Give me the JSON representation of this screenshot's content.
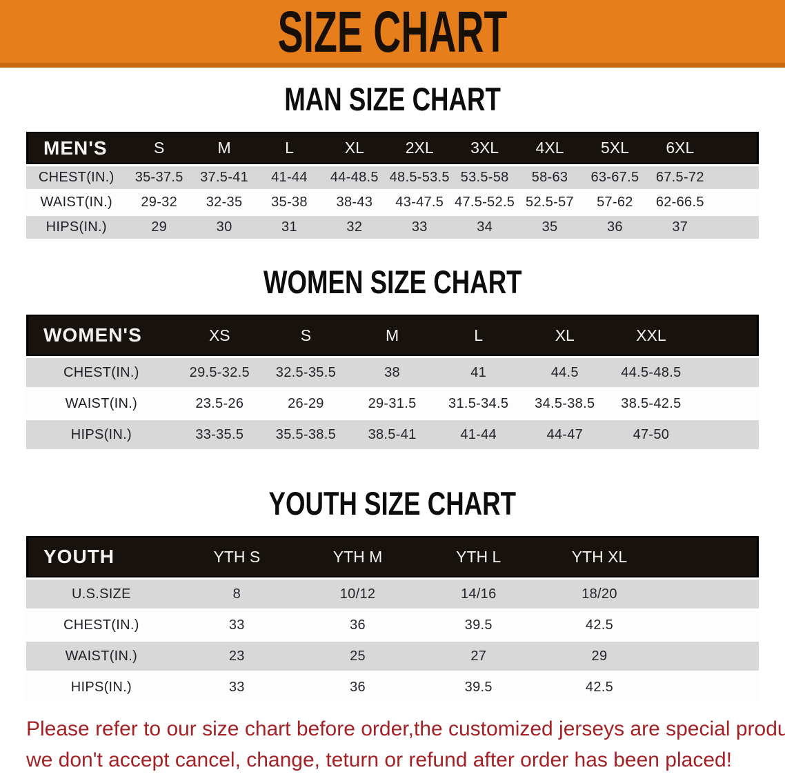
{
  "banner": {
    "title": "SIZE CHART",
    "bg_color": "#e67e1b",
    "edge_color": "#c96a12",
    "text_color": "#181007"
  },
  "colors": {
    "table_header_bg": "#17120d",
    "table_header_text": "#f5f3f0",
    "row_gray": "#d8d8d8",
    "row_white": "#fdfdfd",
    "disclaimer_red": "#a42226"
  },
  "sections": [
    {
      "id": "men",
      "heading": "MAN SIZE CHART",
      "header_label": "MEN'S",
      "columns": [
        "S",
        "M",
        "L",
        "XL",
        "2XL",
        "3XL",
        "4XL",
        "5XL",
        "6XL"
      ],
      "rows": [
        {
          "label": "CHEST(IN.)",
          "values": [
            "35-37.5",
            "37.5-41",
            "41-44",
            "44-48.5",
            "48.5-53.5",
            "53.5-58",
            "58-63",
            "63-67.5",
            "67.5-72"
          ]
        },
        {
          "label": "WAIST(IN.)",
          "values": [
            "29-32",
            "32-35",
            "35-38",
            "38-43",
            "43-47.5",
            "47.5-52.5",
            "52.5-57",
            "57-62",
            "62-66.5"
          ]
        },
        {
          "label": "HIPS(IN.)",
          "values": [
            "29",
            "30",
            "31",
            "32",
            "33",
            "34",
            "35",
            "36",
            "37"
          ]
        }
      ]
    },
    {
      "id": "women",
      "heading": "WOMEN SIZE CHART",
      "header_label": "WOMEN'S",
      "columns": [
        "XS",
        "S",
        "M",
        "L",
        "XL",
        "XXL"
      ],
      "rows": [
        {
          "label": "CHEST(IN.)",
          "values": [
            "29.5-32.5",
            "32.5-35.5",
            "38",
            "41",
            "44.5",
            "44.5-48.5"
          ]
        },
        {
          "label": "WAIST(IN.)",
          "values": [
            "23.5-26",
            "26-29",
            "29-31.5",
            "31.5-34.5",
            "34.5-38.5",
            "38.5-42.5"
          ]
        },
        {
          "label": "HIPS(IN.)",
          "values": [
            "33-35.5",
            "35.5-38.5",
            "38.5-41",
            "41-44",
            "44-47",
            "47-50"
          ]
        }
      ]
    },
    {
      "id": "youth",
      "heading": "YOUTH SIZE CHART",
      "header_label": "YOUTH",
      "columns": [
        "YTH S",
        "YTH M",
        "YTH L",
        "YTH XL"
      ],
      "rows": [
        {
          "label": "U.S.SIZE",
          "values": [
            "8",
            "10/12",
            "14/16",
            "18/20"
          ]
        },
        {
          "label": "CHEST(IN.)",
          "values": [
            "33",
            "36",
            "39.5",
            "42.5"
          ]
        },
        {
          "label": "WAIST(IN.)",
          "values": [
            "23",
            "25",
            "27",
            "29"
          ]
        },
        {
          "label": "HIPS(IN.)",
          "values": [
            "33",
            "36",
            "39.5",
            "42.5"
          ]
        }
      ]
    }
  ],
  "disclaimer": {
    "line1": "Please refer to our size chart before order,the customized jerseys are special products,",
    "line2": "we don't accept cancel, change, teturn or refund after order has been placed!"
  }
}
